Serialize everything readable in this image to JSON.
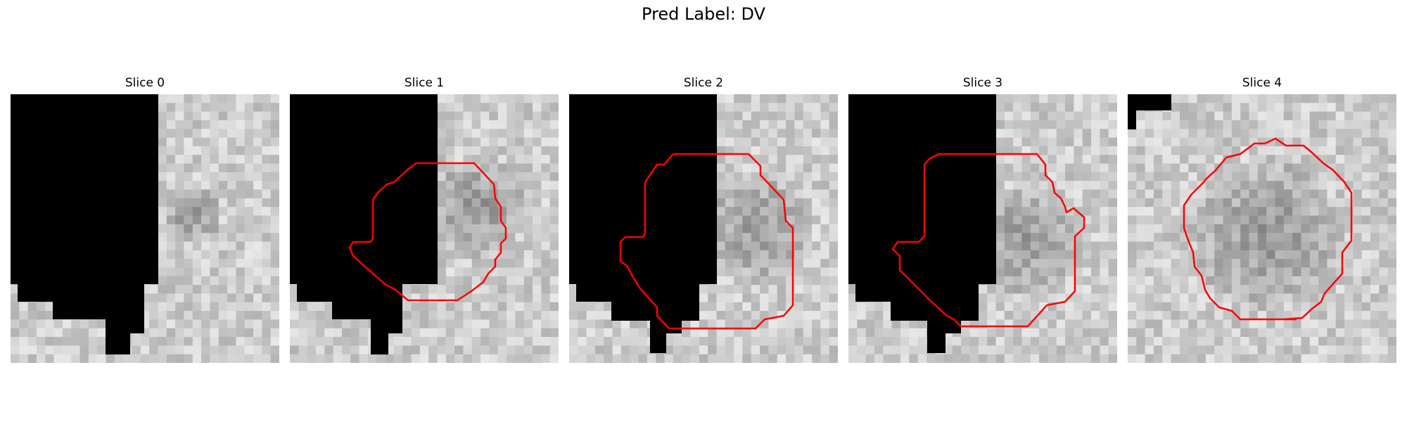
{
  "figure": {
    "title": "Pred Label: DV"
  },
  "panels": [
    {
      "title": "Slice 0",
      "has_contour": false
    },
    {
      "title": "Slice 1",
      "has_contour": true
    },
    {
      "title": "Slice 2",
      "has_contour": true
    },
    {
      "title": "Slice 3",
      "has_contour": true
    },
    {
      "title": "Slice 4",
      "has_contour": true
    }
  ],
  "colors": {
    "contour": "#ff0000",
    "mask": "#000000"
  }
}
